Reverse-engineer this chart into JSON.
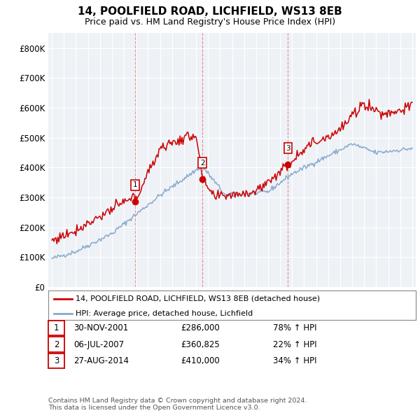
{
  "title": "14, POOLFIELD ROAD, LICHFIELD, WS13 8EB",
  "subtitle": "Price paid vs. HM Land Registry's House Price Index (HPI)",
  "ylim": [
    0,
    850000
  ],
  "yticks": [
    0,
    100000,
    200000,
    300000,
    400000,
    500000,
    600000,
    700000,
    800000
  ],
  "ytick_labels": [
    "£0",
    "£100K",
    "£200K",
    "£300K",
    "£400K",
    "£500K",
    "£600K",
    "£700K",
    "£800K"
  ],
  "xlim_start": 1994.7,
  "xlim_end": 2025.3,
  "red_color": "#cc0000",
  "blue_color": "#88aacc",
  "sale_dates": [
    2001.916,
    2007.54,
    2014.66
  ],
  "sale_prices": [
    286000,
    360825,
    410000
  ],
  "sale_labels": [
    "1",
    "2",
    "3"
  ],
  "transaction_table": [
    [
      "1",
      "30-NOV-2001",
      "£286,000",
      "78% ↑ HPI"
    ],
    [
      "2",
      "06-JUL-2007",
      "£360,825",
      "22% ↑ HPI"
    ],
    [
      "3",
      "27-AUG-2014",
      "£410,000",
      "34% ↑ HPI"
    ]
  ],
  "legend_line1": "14, POOLFIELD ROAD, LICHFIELD, WS13 8EB (detached house)",
  "legend_line2": "HPI: Average price, detached house, Lichfield",
  "footer": "Contains HM Land Registry data © Crown copyright and database right 2024.\nThis data is licensed under the Open Government Licence v3.0.",
  "vline_dates": [
    2001.916,
    2007.54,
    2014.66
  ],
  "background_color": "#eef2f7"
}
